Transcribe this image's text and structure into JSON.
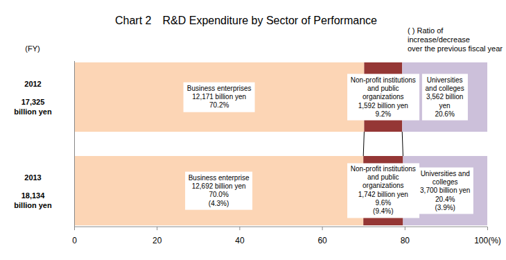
{
  "chart_data": {
    "type": "bar",
    "title": "Chart 2　R&D Expenditure by Sector of Performance",
    "orientation": "horizontal",
    "stacked": true,
    "data_labels": true,
    "y_label": "(FY)",
    "annotations": [
      "( ) Ratio of",
      "increase/decrease",
      "over the previous fiscal year"
    ],
    "categories": [
      "2012",
      "2013"
    ],
    "total_labels": [
      [
        "17,325",
        "billion yen"
      ],
      [
        "18,134",
        "billion yen"
      ]
    ],
    "xlim": [
      0,
      100
    ],
    "xticks": [
      0,
      20,
      40,
      60,
      80,
      {
        "value": 100,
        "label": "100(%)"
      }
    ],
    "series": [
      {
        "name": "Business enterprises",
        "color": "#fcd5b5",
        "values": [
          70.2,
          70.0
        ],
        "value_labels": [
          [
            "Business enterprises",
            "12,171 billion yen",
            "70.2%"
          ],
          [
            "Business enterprise",
            "12,692 billion yen",
            "70.0%",
            "(4.3%)"
          ]
        ]
      },
      {
        "name": "Non-profit institutions and public organizations",
        "color": "#953735",
        "values": [
          9.2,
          9.6
        ],
        "value_labels": [
          [
            "Non-profit institutions",
            "and public",
            "organizations",
            "1,592 billion yen",
            "9.2%"
          ],
          [
            "Non-profit institutions",
            "and public",
            "organizations",
            "1,742 billion yen",
            "9.6%",
            "(9.4%)"
          ]
        ]
      },
      {
        "name": "Universities and colleges",
        "color": "#ccc0da",
        "values": [
          20.6,
          20.4
        ],
        "value_labels": [
          [
            "Universities",
            "and colleges",
            "3,562 billion",
            "yen",
            "20.6%"
          ],
          [
            "Universities and",
            "colleges",
            "3,700 billion yen",
            "20.4%",
            "(3.9%)"
          ]
        ]
      }
    ]
  }
}
